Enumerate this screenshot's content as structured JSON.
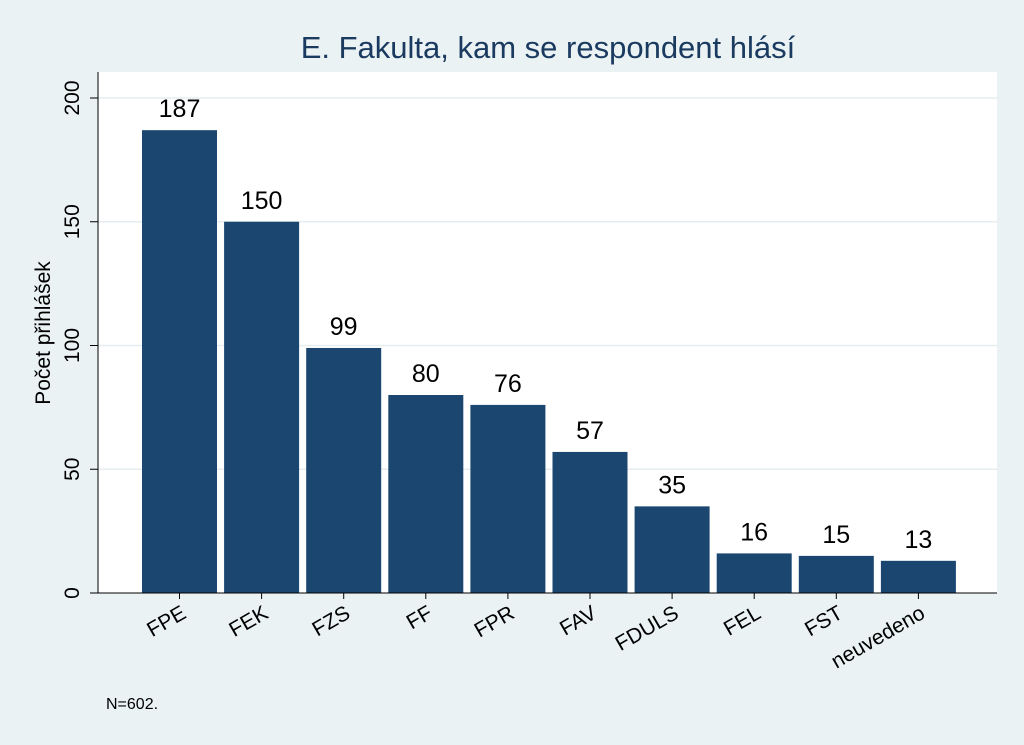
{
  "chart_data": {
    "type": "bar",
    "title": "E. Fakulta, kam se respondent hlásí",
    "xlabel": "",
    "ylabel": "Počet přihlášek",
    "categories": [
      "FPE",
      "FEK",
      "FZS",
      "FF",
      "FPR",
      "FAV",
      "FDULS",
      "FEL",
      "FST",
      "neuvedeno"
    ],
    "values": [
      187,
      150,
      99,
      80,
      76,
      57,
      35,
      16,
      15,
      13
    ],
    "ylim": [
      0,
      210
    ],
    "yticks": [
      0,
      50,
      100,
      150,
      200
    ],
    "grid": true,
    "legend": "none",
    "bar_color": "#1a4670",
    "background_color": "#eaf2f3",
    "plot_background_color": "#ffffff",
    "gridline_color": "#e4eef0",
    "note": "N=602."
  }
}
